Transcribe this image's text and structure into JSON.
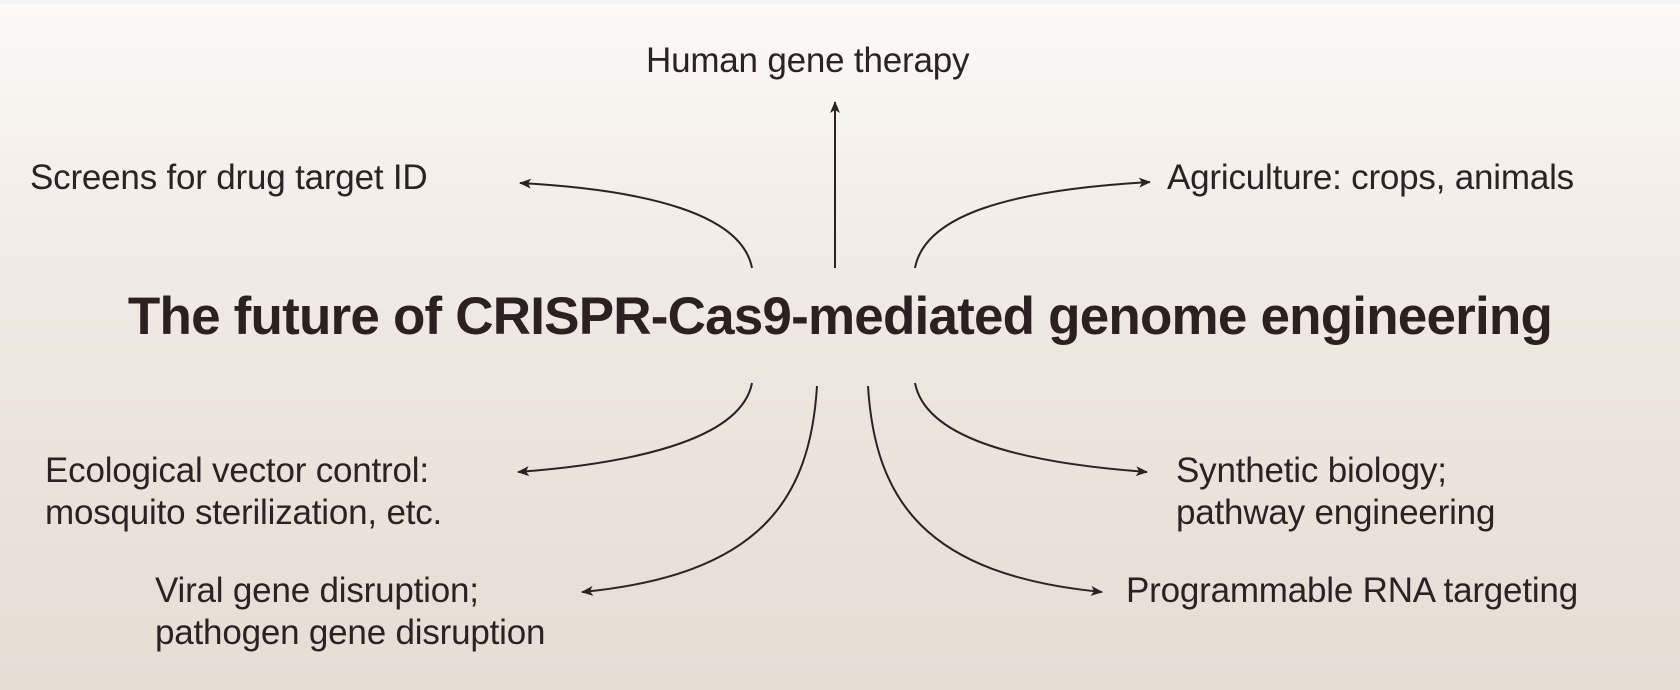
{
  "diagram": {
    "title": "The future of CRISPR-Cas9-mediated genome engineering",
    "labels": {
      "human_gene_therapy": "Human gene therapy",
      "screens": "Screens for drug target ID",
      "agriculture": "Agriculture: crops, animals",
      "ecological_line1": "Ecological vector control:",
      "ecological_line2": "mosquito sterilization, etc.",
      "synthetic_line1": "Synthetic biology;",
      "synthetic_line2": "pathway engineering",
      "viral_line1": "Viral gene disruption;",
      "viral_line2": "pathogen gene disruption",
      "rna_targeting": "Programmable RNA targeting"
    },
    "colors": {
      "text": "#2b2323",
      "arrow": "#2b2323"
    }
  }
}
